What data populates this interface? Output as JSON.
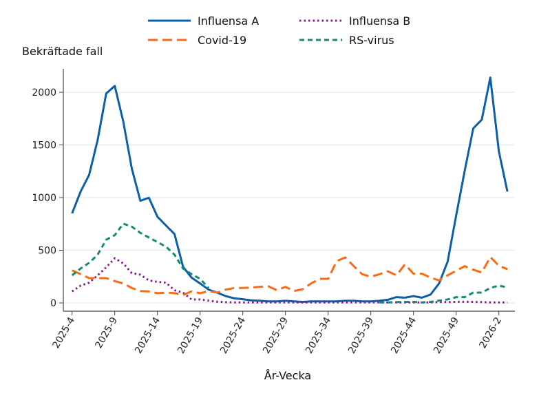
{
  "chart_data": {
    "type": "line",
    "xlabel": "År-Vecka",
    "ylabel": "Bekräftade fall",
    "ylim": [
      0,
      2150
    ],
    "yticks": [
      0,
      500,
      1000,
      1500,
      2000
    ],
    "ytick_labels": [
      "0",
      "500",
      "1000",
      "1500",
      "2000"
    ],
    "grid": "horizontal",
    "legend_position": "top",
    "x": [
      "2025-4",
      "2025-5",
      "2025-6",
      "2025-7",
      "2025-8",
      "2025-9",
      "2025-10",
      "2025-11",
      "2025-12",
      "2025-13",
      "2025-14",
      "2025-15",
      "2025-16",
      "2025-17",
      "2025-18",
      "2025-19",
      "2025-20",
      "2025-21",
      "2025-22",
      "2025-23",
      "2025-24",
      "2025-25",
      "2025-26",
      "2025-27",
      "2025-28",
      "2025-29",
      "2025-30",
      "2025-31",
      "2025-32",
      "2025-33",
      "2025-34",
      "2025-35",
      "2025-36",
      "2025-37",
      "2025-38",
      "2025-39",
      "2025-40",
      "2025-41",
      "2025-42",
      "2025-43",
      "2025-44",
      "2025-45",
      "2025-46",
      "2025-47",
      "2025-48",
      "2025-49",
      "2025-50",
      "2025-51",
      "2025-52",
      "2026-1",
      "2026-2",
      "2026-3"
    ],
    "xtick_labels": [
      "2025-4",
      "2025-9",
      "2025-14",
      "2025-19",
      "2025-24",
      "2025-29",
      "2025-34",
      "2025-39",
      "2025-44",
      "2025-49",
      "2026-2"
    ],
    "series": [
      {
        "name": "Influensa A",
        "color": "#0b5fa8",
        "style": "solid",
        "values": [
          850,
          1057,
          1216,
          1548,
          1988,
          2060,
          1722,
          1275,
          970,
          998,
          818,
          735,
          654,
          344,
          240,
          185,
          126,
          98,
          65,
          44,
          35,
          25,
          20,
          15,
          15,
          20,
          15,
          10,
          15,
          15,
          15,
          15,
          20,
          20,
          15,
          15,
          20,
          30,
          55,
          50,
          65,
          50,
          80,
          185,
          392,
          830,
          1255,
          1657,
          1740,
          2140,
          1440,
          1057
        ]
      },
      {
        "name": "Influensa B",
        "color": "#8a1b8a",
        "style": "dotted",
        "values": [
          109,
          164,
          192,
          262,
          338,
          425,
          375,
          283,
          268,
          214,
          200,
          192,
          120,
          98,
          33,
          33,
          22,
          11,
          7,
          5,
          5,
          5,
          5,
          5,
          5,
          5,
          5,
          5,
          5,
          5,
          5,
          5,
          5,
          5,
          5,
          5,
          5,
          5,
          5,
          5,
          5,
          5,
          5,
          8,
          8,
          10,
          11,
          10,
          8,
          5,
          5,
          5
        ]
      },
      {
        "name": "Covid-19",
        "color": "#fb6a10",
        "style": "dashed",
        "values": [
          310,
          273,
          235,
          235,
          235,
          207,
          185,
          142,
          113,
          109,
          92,
          98,
          92,
          76,
          109,
          92,
          113,
          98,
          126,
          142,
          142,
          146,
          153,
          157,
          120,
          153,
          113,
          130,
          185,
          229,
          229,
          397,
          432,
          349,
          272,
          250,
          272,
          300,
          262,
          366,
          277,
          277,
          240,
          214,
          262,
          305,
          349,
          316,
          288,
          436,
          353,
          320
        ]
      },
      {
        "name": "RS-virus",
        "color": "#128a78",
        "style": "short-dashed",
        "values": [
          262,
          327,
          381,
          458,
          600,
          643,
          752,
          724,
          665,
          621,
          578,
          534,
          458,
          327,
          273,
          229,
          142,
          null,
          null,
          null,
          null,
          null,
          null,
          null,
          null,
          null,
          null,
          null,
          null,
          null,
          null,
          null,
          null,
          null,
          null,
          null,
          5,
          5,
          8,
          10,
          10,
          5,
          10,
          22,
          33,
          55,
          55,
          98,
          98,
          142,
          164,
          148
        ]
      }
    ]
  }
}
